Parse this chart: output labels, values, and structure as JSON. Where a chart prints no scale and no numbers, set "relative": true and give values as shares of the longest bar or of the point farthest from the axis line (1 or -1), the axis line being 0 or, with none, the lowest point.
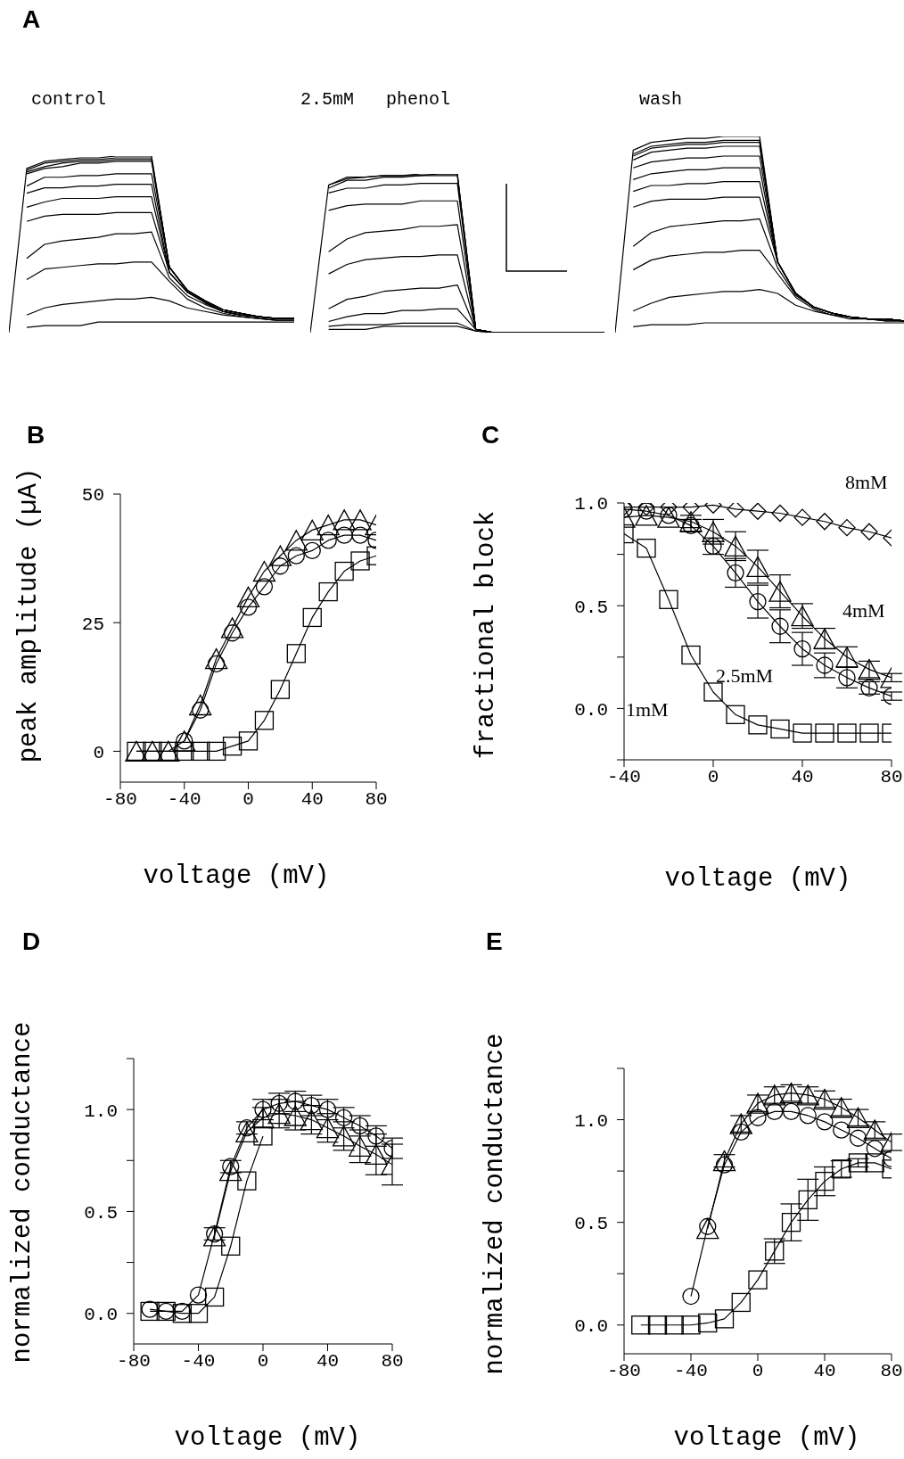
{
  "chart_data": [
    {
      "type": "line",
      "title": "A",
      "subtitle": "control",
      "relative": true,
      "marker": "none",
      "categories": [
        null,
        null,
        null,
        null,
        null,
        null,
        null,
        null,
        null,
        null,
        null,
        null,
        null,
        null,
        null,
        null,
        null
      ],
      "series": [
        {
          "color": "#000000",
          "values": [
            0,
            0.93,
            0.97,
            0.98,
            0.99,
            0.99,
            1,
            1,
            1,
            0.37,
            0.24,
            0.18,
            0.13,
            0.11,
            0.09,
            0.08,
            0.08
          ]
        },
        {
          "color": "#000000",
          "values": [
            null,
            0.92,
            0.96,
            0.97,
            0.98,
            0.98,
            0.99,
            0.99,
            0.99,
            0.37,
            0.24,
            0.18,
            0.13,
            0.11,
            0.09,
            0.08,
            0.08
          ]
        },
        {
          "color": "#000000",
          "values": [
            null,
            0.91,
            0.94,
            0.96,
            0.97,
            0.97,
            0.98,
            0.98,
            0.98,
            0.37,
            0.24,
            0.18,
            0.13,
            0.11,
            0.09,
            0.08,
            0.08
          ]
        },
        {
          "color": "#000000",
          "values": [
            null,
            0.9,
            0.93,
            0.94,
            0.96,
            0.96,
            0.97,
            0.97,
            0.97,
            0.37,
            0.24,
            0.18,
            0.13,
            0.11,
            0.09,
            0.08,
            0.08
          ]
        },
        {
          "color": "#000000",
          "values": [
            null,
            0.83,
            0.88,
            0.88,
            0.89,
            0.89,
            0.9,
            0.9,
            0.9,
            0.37,
            0.24,
            0.18,
            0.13,
            0.11,
            0.09,
            0.08,
            0.08
          ]
        },
        {
          "color": "#000000",
          "values": [
            null,
            0.79,
            0.82,
            0.82,
            0.83,
            0.83,
            0.84,
            0.84,
            0.84,
            0.34,
            0.23,
            0.17,
            0.12,
            0.1,
            0.09,
            0.08,
            0.08
          ]
        },
        {
          "color": "#000000",
          "values": [
            null,
            0.71,
            0.74,
            0.76,
            0.76,
            0.76,
            0.77,
            0.77,
            0.77,
            0.34,
            0.23,
            0.17,
            0.12,
            0.1,
            0.09,
            0.08,
            0.08
          ]
        },
        {
          "color": "#000000",
          "values": [
            null,
            0.63,
            0.66,
            0.67,
            0.67,
            0.67,
            0.68,
            0.68,
            0.68,
            0.34,
            0.23,
            0.17,
            0.12,
            0.1,
            0.09,
            0.08,
            0.08
          ]
        },
        {
          "color": "#000000",
          "values": [
            null,
            0.42,
            0.5,
            0.52,
            0.53,
            0.54,
            0.56,
            0.56,
            0.57,
            0.31,
            0.21,
            0.16,
            0.12,
            0.1,
            0.09,
            0.08,
            0.08
          ]
        },
        {
          "color": "#000000",
          "values": [
            null,
            0.3,
            0.36,
            0.37,
            0.38,
            0.39,
            0.39,
            0.4,
            0.4,
            0.29,
            0.19,
            0.14,
            0.11,
            0.09,
            0.08,
            0.07,
            0.07
          ]
        },
        {
          "color": "#000000",
          "values": [
            null,
            0.1,
            0.14,
            0.16,
            0.17,
            0.18,
            0.19,
            0.19,
            0.2,
            0.18,
            0.14,
            0.12,
            0.1,
            0.09,
            0.08,
            0.07,
            0.07
          ]
        },
        {
          "color": "#000000",
          "values": [
            null,
            0.03,
            0.04,
            0.04,
            0.04,
            0.06,
            0.06,
            0.06,
            0.06,
            0.06,
            0.06,
            0.06,
            0.06,
            0.06,
            0.06,
            0.06,
            0.06
          ]
        }
      ]
    },
    {
      "type": "line",
      "subtitle": "2.5mM   phenol",
      "relative": true,
      "marker": "none",
      "categories": [
        null,
        null,
        null,
        null,
        null,
        null,
        null,
        null,
        null,
        null,
        null,
        null,
        null,
        null,
        null,
        null,
        null
      ],
      "series": [
        {
          "color": "#000000",
          "values": [
            0,
            0.93,
            0.98,
            0.98,
            0.99,
            0.99,
            1,
            1,
            1,
            0.02,
            0,
            0,
            0,
            0,
            0,
            0,
            0
          ]
        },
        {
          "color": "#000000",
          "values": [
            null,
            0.93,
            0.97,
            0.98,
            0.99,
            0.99,
            0.99,
            1,
            1,
            0.02,
            0,
            0,
            0,
            0,
            0,
            0,
            0
          ]
        },
        {
          "color": "#000000",
          "values": [
            null,
            0.91,
            0.96,
            0.96,
            0.98,
            0.98,
            0.99,
            0.99,
            0.99,
            0.02,
            0,
            0,
            0,
            0,
            0,
            0,
            0
          ]
        },
        {
          "color": "#000000",
          "values": [
            null,
            0.88,
            0.91,
            0.91,
            0.93,
            0.93,
            0.94,
            0.94,
            0.94,
            0.02,
            0,
            0,
            0,
            0,
            0,
            0,
            0
          ]
        },
        {
          "color": "#000000",
          "values": [
            null,
            0.77,
            0.8,
            0.81,
            0.81,
            0.81,
            0.83,
            0.83,
            0.83,
            0.02,
            0,
            0,
            0,
            0,
            0,
            0,
            0
          ]
        },
        {
          "color": "#000000",
          "values": [
            null,
            0.51,
            0.59,
            0.63,
            0.64,
            0.65,
            0.67,
            0.67,
            0.68,
            0.02,
            0,
            0,
            0,
            0,
            0,
            0,
            0
          ]
        },
        {
          "color": "#000000",
          "values": [
            null,
            0.37,
            0.43,
            0.46,
            0.47,
            0.48,
            0.48,
            0.49,
            0.49,
            0.02,
            0,
            0,
            0,
            0,
            0,
            0,
            0
          ]
        },
        {
          "color": "#000000",
          "values": [
            null,
            0.15,
            0.21,
            0.23,
            0.26,
            0.27,
            0.28,
            0.28,
            0.3,
            0.02,
            0,
            0,
            0,
            0,
            0,
            0,
            0
          ]
        },
        {
          "color": "#000000",
          "values": [
            null,
            0.07,
            0.1,
            0.12,
            0.12,
            0.14,
            0.14,
            0.15,
            0.15,
            0.02,
            0,
            0,
            0,
            0,
            0,
            0,
            0
          ]
        },
        {
          "color": "#000000",
          "values": [
            null,
            0.04,
            0.05,
            0.05,
            0.05,
            0.06,
            0.06,
            0.06,
            0.06,
            0.01,
            0,
            0,
            0,
            0,
            0,
            0,
            0
          ]
        },
        {
          "color": "#000000",
          "values": [
            null,
            0.02,
            0.02,
            0.02,
            0.04,
            0.04,
            0.04,
            0.04,
            0.04,
            0.01,
            0,
            0,
            0,
            0,
            0,
            0,
            0
          ]
        }
      ]
    },
    {
      "type": "line",
      "subtitle": "wash",
      "relative": true,
      "marker": "none",
      "categories": [
        null,
        null,
        null,
        null,
        null,
        null,
        null,
        null,
        null,
        null,
        null,
        null,
        null,
        null,
        null,
        null,
        null
      ],
      "series": [
        {
          "color": "#000000",
          "values": [
            0,
            0.93,
            0.97,
            0.98,
            0.99,
            0.99,
            1,
            1,
            1,
            0.36,
            0.2,
            0.13,
            0.1,
            0.08,
            0.07,
            0.07,
            0.06
          ]
        },
        {
          "color": "#000000",
          "values": [
            null,
            0.91,
            0.95,
            0.96,
            0.97,
            0.97,
            0.98,
            0.98,
            0.98,
            0.36,
            0.2,
            0.13,
            0.1,
            0.08,
            0.07,
            0.07,
            0.06
          ]
        },
        {
          "color": "#000000",
          "values": [
            null,
            0.9,
            0.94,
            0.95,
            0.96,
            0.96,
            0.97,
            0.97,
            0.97,
            0.36,
            0.2,
            0.13,
            0.1,
            0.08,
            0.07,
            0.07,
            0.06
          ]
        },
        {
          "color": "#000000",
          "values": [
            null,
            0.88,
            0.92,
            0.93,
            0.94,
            0.94,
            0.95,
            0.95,
            0.95,
            0.36,
            0.2,
            0.13,
            0.1,
            0.08,
            0.07,
            0.07,
            0.06
          ]
        },
        {
          "color": "#000000",
          "values": [
            null,
            0.84,
            0.87,
            0.88,
            0.89,
            0.89,
            0.9,
            0.9,
            0.9,
            0.36,
            0.2,
            0.13,
            0.1,
            0.08,
            0.07,
            0.07,
            0.06
          ]
        },
        {
          "color": "#000000",
          "values": [
            null,
            0.78,
            0.81,
            0.82,
            0.83,
            0.83,
            0.84,
            0.84,
            0.84,
            0.36,
            0.2,
            0.13,
            0.1,
            0.08,
            0.07,
            0.07,
            0.06
          ]
        },
        {
          "color": "#000000",
          "values": [
            null,
            0.72,
            0.75,
            0.75,
            0.76,
            0.76,
            0.77,
            0.77,
            0.77,
            0.36,
            0.2,
            0.13,
            0.1,
            0.08,
            0.07,
            0.07,
            0.06
          ]
        },
        {
          "color": "#000000",
          "values": [
            null,
            0.64,
            0.67,
            0.68,
            0.68,
            0.68,
            0.69,
            0.69,
            0.69,
            0.36,
            0.2,
            0.13,
            0.1,
            0.08,
            0.07,
            0.07,
            0.06
          ]
        },
        {
          "color": "#000000",
          "values": [
            null,
            0.44,
            0.51,
            0.54,
            0.55,
            0.56,
            0.57,
            0.57,
            0.58,
            0.33,
            0.19,
            0.13,
            0.1,
            0.08,
            0.07,
            0.07,
            0.06
          ]
        },
        {
          "color": "#000000",
          "values": [
            null,
            0.32,
            0.37,
            0.39,
            0.4,
            0.41,
            0.41,
            0.42,
            0.42,
            0.3,
            0.18,
            0.12,
            0.09,
            0.08,
            0.07,
            0.06,
            0.06
          ]
        },
        {
          "color": "#000000",
          "values": [
            null,
            0.11,
            0.15,
            0.18,
            0.19,
            0.2,
            0.21,
            0.21,
            0.22,
            0.2,
            0.14,
            0.11,
            0.09,
            0.07,
            0.07,
            0.06,
            0.06
          ]
        },
        {
          "color": "#000000",
          "values": [
            null,
            0.03,
            0.04,
            0.04,
            0.04,
            0.05,
            0.05,
            0.05,
            0.05,
            0.05,
            0.05,
            0.05,
            0.05,
            0.05,
            0.05,
            0.05,
            0.05
          ]
        }
      ]
    },
    {
      "type": "line",
      "title": "B",
      "xlabel": "voltage (mV)",
      "ylabel": "peak amplitude (µA)",
      "xlim": [
        -80,
        80
      ],
      "xticks": [
        -80,
        -40,
        0,
        40,
        80
      ],
      "ylim": [
        -6,
        50
      ],
      "yticks": [
        0,
        25,
        50
      ],
      "x": [
        -70,
        -60,
        -50,
        -40,
        -30,
        -20,
        -10,
        0,
        10,
        20,
        30,
        40,
        50,
        60,
        70,
        80
      ],
      "series": [
        {
          "color": "#000000",
          "marker": "square",
          "values": [
            0,
            0,
            0,
            0,
            0,
            0,
            1,
            2,
            6,
            12,
            19,
            26,
            31,
            35,
            37,
            38
          ]
        },
        {
          "color": "#000000",
          "marker": "circle",
          "values": [
            null,
            null,
            null,
            2,
            8,
            17,
            23,
            28,
            32,
            36,
            38,
            39,
            41,
            42,
            42,
            41
          ]
        },
        {
          "color": "#000000",
          "marker": "triangle",
          "values": [
            0,
            0,
            0,
            2,
            9,
            18,
            24,
            30,
            35,
            38,
            41,
            43,
            44,
            45,
            45,
            44
          ]
        }
      ]
    },
    {
      "type": "line",
      "title": "C",
      "xlabel": "voltage (mV)",
      "ylabel": "fractional block",
      "xlim": [
        -40,
        80
      ],
      "xticks": [
        -40,
        0,
        40,
        80
      ],
      "ylim": [
        -0.25,
        1.0
      ],
      "yticks": [
        {
          "value": -0.25,
          "label": null
        },
        {
          "value": 0,
          "label": "0.0"
        },
        {
          "value": 0.25,
          "label": null
        },
        {
          "value": 0.5,
          "label": "0.5"
        },
        {
          "value": 0.75,
          "label": null
        },
        {
          "value": 1,
          "label": "1.0"
        }
      ],
      "annotations": [
        "8mM",
        "4mM",
        "2.5mM",
        "1mM"
      ],
      "x": [
        -40,
        -30,
        -20,
        -10,
        0,
        10,
        20,
        30,
        40,
        50,
        60,
        70,
        80
      ],
      "series": [
        {
          "color": "#000000",
          "marker": "diamond",
          "values": [
            0.98,
            0.98,
            0.98,
            0.98,
            0.99,
            0.97,
            0.96,
            0.95,
            0.93,
            0.91,
            0.88,
            0.86,
            0.83
          ]
        },
        {
          "color": "#000000",
          "marker": "circle",
          "values": [
            0.97,
            0.96,
            0.94,
            0.89,
            0.79,
            0.66,
            0.52,
            0.4,
            0.29,
            0.21,
            0.15,
            0.1,
            0.06
          ],
          "errors": [
            null,
            null,
            null,
            0.03,
            0.04,
            0.07,
            0.08,
            0.08,
            0.08,
            0.06,
            0.05,
            0.03,
            0.02
          ]
        },
        {
          "color": "#000000",
          "marker": "triangle",
          "values": [
            0.93,
            0.94,
            0.93,
            0.91,
            0.86,
            0.79,
            0.69,
            0.57,
            0.45,
            0.34,
            0.25,
            0.19,
            0.15
          ],
          "errors": [
            null,
            null,
            null,
            0.03,
            0.06,
            0.07,
            0.08,
            0.08,
            0.06,
            0.05,
            0.05,
            0.04,
            0.02
          ]
        },
        {
          "color": "#000000",
          "marker": "square",
          "values": [
            0.85,
            0.78,
            0.53,
            0.26,
            0.08,
            -0.03,
            -0.08,
            -0.1,
            -0.12,
            -0.12,
            -0.12,
            -0.12,
            -0.12
          ]
        }
      ]
    },
    {
      "type": "line",
      "title": "D",
      "xlabel": "voltage (mV)",
      "ylabel": "normalized conductance",
      "xlim": [
        -80,
        80
      ],
      "xticks": [
        -80,
        -40,
        0,
        40,
        80
      ],
      "ylim": [
        -0.15,
        1.25
      ],
      "yticks": [
        {
          "value": 0,
          "label": "0.0"
        },
        {
          "value": 0.25,
          "label": null
        },
        {
          "value": 0.5,
          "label": "0.5"
        },
        {
          "value": 0.75,
          "label": null
        },
        {
          "value": 1,
          "label": "1.0"
        },
        {
          "value": 1.25,
          "label": null
        }
      ],
      "x": [
        -70,
        -60,
        -50,
        -40,
        -30,
        -20,
        -10,
        0,
        10,
        20,
        30,
        40,
        50,
        60,
        70,
        80
      ],
      "series": [
        {
          "color": "#000000",
          "marker": "square",
          "values": [
            0.01,
            0.01,
            0,
            0,
            0.08,
            0.33,
            0.65,
            0.87,
            null,
            null,
            null,
            null,
            null,
            null,
            null,
            null
          ]
        },
        {
          "color": "#000000",
          "marker": "triangle",
          "values": [
            null,
            null,
            null,
            null,
            0.38,
            0.7,
            0.89,
            0.96,
            0.98,
            0.97,
            0.95,
            0.91,
            0.87,
            0.82,
            0.78,
            0.73
          ],
          "errors": [
            null,
            null,
            null,
            null,
            null,
            null,
            null,
            0.05,
            0.07,
            0.07,
            0.07,
            0.07,
            0.07,
            0.08,
            0.1,
            0.1
          ]
        },
        {
          "color": "#000000",
          "marker": "circle",
          "values": [
            0.02,
            0.01,
            0.01,
            0.09,
            0.39,
            0.72,
            0.91,
            1.0,
            1.03,
            1.04,
            1.02,
            1.0,
            0.96,
            0.92,
            0.87,
            0.81
          ],
          "errors": [
            null,
            null,
            null,
            null,
            0.03,
            0.03,
            0.03,
            0.05,
            0.05,
            0.05,
            0.05,
            0.05,
            0.05,
            0.05,
            0.05,
            0.05
          ]
        }
      ]
    },
    {
      "type": "line",
      "title": "E",
      "xlabel": "voltage (mV)",
      "ylabel": "normalized conductance",
      "xlim": [
        -80,
        80
      ],
      "xticks": [
        -80,
        -40,
        0,
        40,
        80
      ],
      "ylim": [
        -0.14,
        1.25
      ],
      "yticks": [
        {
          "value": 0,
          "label": "0.0"
        },
        {
          "value": 0.25,
          "label": null
        },
        {
          "value": 0.5,
          "label": "0.5"
        },
        {
          "value": 0.75,
          "label": null
        },
        {
          "value": 1,
          "label": "1.0"
        },
        {
          "value": 1.25,
          "label": null
        }
      ],
      "x": [
        -70,
        -60,
        -50,
        -40,
        -30,
        -20,
        -10,
        0,
        10,
        20,
        30,
        40,
        50,
        60,
        70,
        80
      ],
      "series": [
        {
          "color": "#000000",
          "marker": "triangle",
          "values": [
            null,
            null,
            null,
            null,
            0.47,
            0.8,
            0.98,
            1.08,
            1.12,
            1.13,
            1.12,
            1.1,
            1.06,
            1.01,
            0.95,
            0.89
          ],
          "errors": [
            null,
            null,
            null,
            null,
            null,
            0.03,
            0.04,
            0.04,
            0.04,
            0.04,
            0.04,
            0.04,
            0.04,
            0.04,
            0.04,
            0.04
          ]
        },
        {
          "color": "#000000",
          "marker": "circle",
          "values": [
            null,
            null,
            null,
            0.14,
            0.48,
            0.78,
            0.94,
            1.01,
            1.04,
            1.04,
            1.02,
            0.99,
            0.95,
            0.91,
            0.86,
            0.81
          ]
        },
        {
          "color": "#000000",
          "marker": "square",
          "values": [
            0,
            0,
            0,
            0,
            0.01,
            0.03,
            0.11,
            0.22,
            0.36,
            0.5,
            0.61,
            0.7,
            0.76,
            0.79,
            0.79,
            0.76
          ],
          "errors": [
            null,
            null,
            null,
            null,
            null,
            null,
            null,
            null,
            0.06,
            0.09,
            0.1,
            0.07,
            0.04,
            0.02,
            null,
            null
          ]
        }
      ]
    }
  ]
}
